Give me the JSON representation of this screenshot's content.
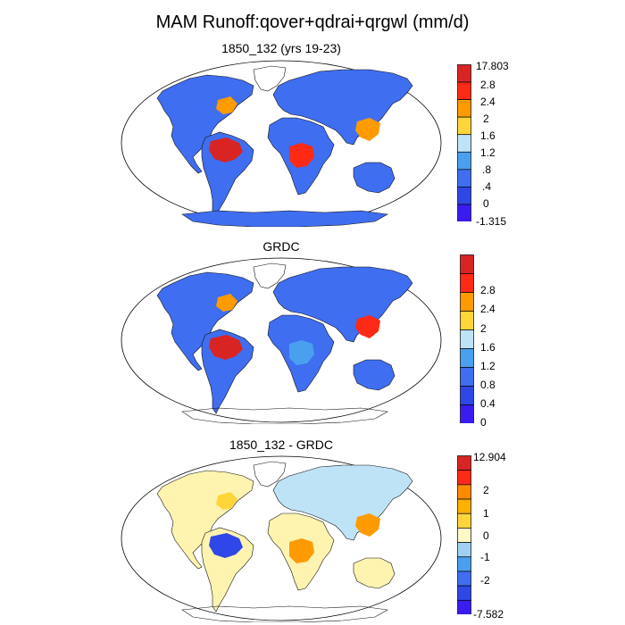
{
  "title": "MAM Runoff:qover+qdrai+qrgwl (mm/d)",
  "panels": [
    {
      "id": "model",
      "title": "1850_132 (yrs 19-23)",
      "colorbar": {
        "colors": [
          "#3a1cf0",
          "#2f47e6",
          "#3f6ef0",
          "#4aa0ee",
          "#bfe3f6",
          "#ffd53a",
          "#ff9a00",
          "#ff2a16",
          "#d92424"
        ],
        "labels": [
          "17.803",
          "2.8",
          "2.4",
          "2",
          "1.6",
          "1.2",
          ".8",
          ".4",
          "0",
          "-1.315"
        ]
      },
      "land_colors": {
        "north_america": "#3f6ef0",
        "south_america": "#3f6ef0",
        "africa": "#3f6ef0",
        "eurasia": "#3f6ef0",
        "australia": "#3f6ef0",
        "antarctica": "#3f6ef0",
        "amazon": "#d92424",
        "congo": "#ff2a16",
        "se_asia": "#ff9a00",
        "east_us": "#ff9a00"
      }
    },
    {
      "id": "obs",
      "title": "GRDC",
      "colorbar": {
        "colors": [
          "#3a1cf0",
          "#2f47e6",
          "#3f6ef0",
          "#4aa0ee",
          "#bfe3f6",
          "#ffd53a",
          "#ff9a00",
          "#ff2a16",
          "#d92424"
        ],
        "labels": [
          "2.8",
          "2.4",
          "2",
          "1.6",
          "1.2",
          "0.8",
          "0.4",
          "0"
        ]
      },
      "land_colors": {
        "north_america": "#3f6ef0",
        "south_america": "#3f6ef0",
        "africa": "#3f6ef0",
        "eurasia": "#3f6ef0",
        "australia": "#3f6ef0",
        "amazon": "#d92424",
        "congo": "#4aa0ee",
        "se_asia": "#ff2a16",
        "east_us": "#ff9a00"
      }
    },
    {
      "id": "diff",
      "title": "1850_132 - GRDC",
      "colorbar": {
        "colors": [
          "#3a1cf0",
          "#2f47e6",
          "#3f6ef0",
          "#4aa0ee",
          "#9fd2f2",
          "#fff8c8",
          "#ffd53a",
          "#ffb000",
          "#ff8a00",
          "#ff2a16",
          "#d92424"
        ],
        "labels": [
          "12.904",
          "2",
          "1",
          "0",
          "-1",
          "-2",
          "-7.582"
        ]
      },
      "land_colors": {
        "north_america": "#fff3b0",
        "south_america": "#fff3b0",
        "africa": "#fff3b0",
        "eurasia": "#bfe3f6",
        "australia": "#fff3b0",
        "amazon": "#2f47e6",
        "congo": "#ff9a00",
        "se_asia": "#ff9a00",
        "east_us": "#ffd53a"
      }
    }
  ]
}
